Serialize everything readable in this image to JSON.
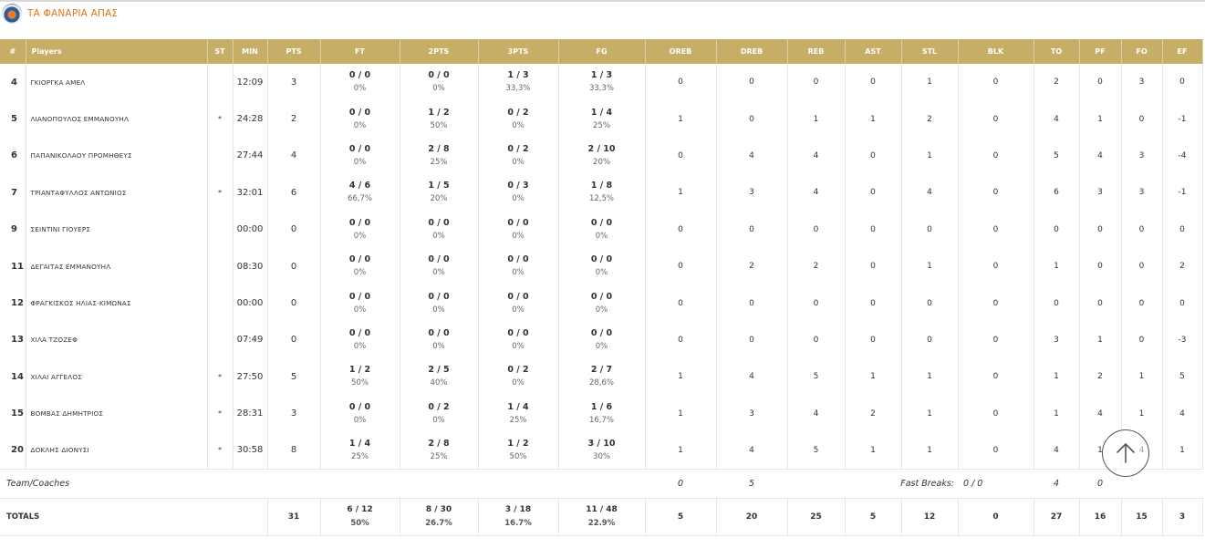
{
  "team": {
    "name": "ΤΑ ΦΑΝΑΡΙΑ ΑΠΑΣ",
    "logo_icon": "team-logo-icon"
  },
  "headers": [
    "#",
    "Players",
    "ST",
    "MIN",
    "PTS",
    "FT",
    "2PTS",
    "3PTS",
    "FG",
    "OREB",
    "DREB",
    "REB",
    "AST",
    "STL",
    "BLK",
    "TO",
    "PF",
    "FO",
    "EF"
  ],
  "players": [
    {
      "num": "4",
      "name": "ΓΚΙΟΡΓΚΑ ΑΜΕΛ",
      "st": "",
      "min": "12:09",
      "pts": "3",
      "ft": "0 / 0",
      "ft_pct": "0%",
      "p2": "0 / 0",
      "p2_pct": "0%",
      "p3": "1 / 3",
      "p3_pct": "33,3%",
      "fg": "1 / 3",
      "fg_pct": "33,3%",
      "oreb": "0",
      "dreb": "0",
      "reb": "0",
      "ast": "0",
      "stl": "1",
      "blk": "0",
      "to": "2",
      "pf": "0",
      "fo": "3",
      "ef": "0"
    },
    {
      "num": "5",
      "name": "ΛΙΑΝΟΠΟΥΛΟΣ ΕΜΜΑΝΟΥΗΛ",
      "st": "*",
      "min": "24:28",
      "pts": "2",
      "ft": "0 / 0",
      "ft_pct": "0%",
      "p2": "1 / 2",
      "p2_pct": "50%",
      "p3": "0 / 2",
      "p3_pct": "0%",
      "fg": "1 / 4",
      "fg_pct": "25%",
      "oreb": "1",
      "dreb": "0",
      "reb": "1",
      "ast": "1",
      "stl": "2",
      "blk": "0",
      "to": "4",
      "pf": "1",
      "fo": "0",
      "ef": "-1"
    },
    {
      "num": "6",
      "name": "ΠΑΠΑΝΙΚΟΛΑΟΥ ΠΡΟΜΗΘΕΥΣ",
      "st": "",
      "min": "27:44",
      "pts": "4",
      "ft": "0 / 0",
      "ft_pct": "0%",
      "p2": "2 / 8",
      "p2_pct": "25%",
      "p3": "0 / 2",
      "p3_pct": "0%",
      "fg": "2 / 10",
      "fg_pct": "20%",
      "oreb": "0",
      "dreb": "4",
      "reb": "4",
      "ast": "0",
      "stl": "1",
      "blk": "0",
      "to": "5",
      "pf": "4",
      "fo": "3",
      "ef": "-4"
    },
    {
      "num": "7",
      "name": "ΤΡΙΑΝΤΑΦΥΛΛΟΣ ΑΝΤΩΝΙΟΣ",
      "st": "*",
      "min": "32:01",
      "pts": "6",
      "ft": "4 / 6",
      "ft_pct": "66,7%",
      "p2": "1 / 5",
      "p2_pct": "20%",
      "p3": "0 / 3",
      "p3_pct": "0%",
      "fg": "1 / 8",
      "fg_pct": "12,5%",
      "oreb": "1",
      "dreb": "3",
      "reb": "4",
      "ast": "0",
      "stl": "4",
      "blk": "0",
      "to": "6",
      "pf": "3",
      "fo": "3",
      "ef": "-1"
    },
    {
      "num": "9",
      "name": "ΣΕΙΝΤΙΝΙ ΓΙΟΥΕΡΣ",
      "st": "",
      "min": "00:00",
      "pts": "0",
      "ft": "0 / 0",
      "ft_pct": "0%",
      "p2": "0 / 0",
      "p2_pct": "0%",
      "p3": "0 / 0",
      "p3_pct": "0%",
      "fg": "0 / 0",
      "fg_pct": "0%",
      "oreb": "0",
      "dreb": "0",
      "reb": "0",
      "ast": "0",
      "stl": "0",
      "blk": "0",
      "to": "0",
      "pf": "0",
      "fo": "0",
      "ef": "0"
    },
    {
      "num": "11",
      "name": "ΔΕΓΑΙΤΑΣ ΕΜΜΑΝΟΥΗΛ",
      "st": "",
      "min": "08:30",
      "pts": "0",
      "ft": "0 / 0",
      "ft_pct": "0%",
      "p2": "0 / 0",
      "p2_pct": "0%",
      "p3": "0 / 0",
      "p3_pct": "0%",
      "fg": "0 / 0",
      "fg_pct": "0%",
      "oreb": "0",
      "dreb": "2",
      "reb": "2",
      "ast": "0",
      "stl": "1",
      "blk": "0",
      "to": "1",
      "pf": "0",
      "fo": "0",
      "ef": "2"
    },
    {
      "num": "12",
      "name": "ΦΡΑΓΚΙΣΚΟΣ ΗΛΙΑΣ-ΚΙΜΩΝΑΣ",
      "st": "",
      "min": "00:00",
      "pts": "0",
      "ft": "0 / 0",
      "ft_pct": "0%",
      "p2": "0 / 0",
      "p2_pct": "0%",
      "p3": "0 / 0",
      "p3_pct": "0%",
      "fg": "0 / 0",
      "fg_pct": "0%",
      "oreb": "0",
      "dreb": "0",
      "reb": "0",
      "ast": "0",
      "stl": "0",
      "blk": "0",
      "to": "0",
      "pf": "0",
      "fo": "0",
      "ef": "0"
    },
    {
      "num": "13",
      "name": "ΧΙΛΑ ΤΖΟΖΕΦ",
      "st": "",
      "min": "07:49",
      "pts": "0",
      "ft": "0 / 0",
      "ft_pct": "0%",
      "p2": "0 / 0",
      "p2_pct": "0%",
      "p3": "0 / 0",
      "p3_pct": "0%",
      "fg": "0 / 0",
      "fg_pct": "0%",
      "oreb": "0",
      "dreb": "0",
      "reb": "0",
      "ast": "0",
      "stl": "0",
      "blk": "0",
      "to": "3",
      "pf": "1",
      "fo": "0",
      "ef": "-3"
    },
    {
      "num": "14",
      "name": "ΧΙΛΑΙ ΑΓΓΕΛΟΣ",
      "st": "*",
      "min": "27:50",
      "pts": "5",
      "ft": "1 / 2",
      "ft_pct": "50%",
      "p2": "2 / 5",
      "p2_pct": "40%",
      "p3": "0 / 2",
      "p3_pct": "0%",
      "fg": "2 / 7",
      "fg_pct": "28,6%",
      "oreb": "1",
      "dreb": "4",
      "reb": "5",
      "ast": "1",
      "stl": "1",
      "blk": "0",
      "to": "1",
      "pf": "2",
      "fo": "1",
      "ef": "5"
    },
    {
      "num": "15",
      "name": "ΒΟΜΒΑΣ ΔΗΜΗΤΡΙΟΣ",
      "st": "*",
      "min": "28:31",
      "pts": "3",
      "ft": "0 / 0",
      "ft_pct": "0%",
      "p2": "0 / 2",
      "p2_pct": "0%",
      "p3": "1 / 4",
      "p3_pct": "25%",
      "fg": "1 / 6",
      "fg_pct": "16,7%",
      "oreb": "1",
      "dreb": "3",
      "reb": "4",
      "ast": "2",
      "stl": "1",
      "blk": "0",
      "to": "1",
      "pf": "4",
      "fo": "1",
      "ef": "4"
    },
    {
      "num": "20",
      "name": "ΔΟΚΛΗΣ ΔΙΟΝΥΣΙ",
      "st": "*",
      "min": "30:58",
      "pts": "8",
      "ft": "1 / 4",
      "ft_pct": "25%",
      "p2": "2 / 8",
      "p2_pct": "25%",
      "p3": "1 / 2",
      "p3_pct": "50%",
      "fg": "3 / 10",
      "fg_pct": "30%",
      "oreb": "1",
      "dreb": "4",
      "reb": "5",
      "ast": "1",
      "stl": "1",
      "blk": "0",
      "to": "4",
      "pf": "1",
      "fo": "4",
      "ef": "1"
    }
  ],
  "team_coaches": {
    "label": "Team/Coaches",
    "oreb": "0",
    "dreb": "5",
    "fast_breaks_label": "Fast Breaks:",
    "fast_breaks": "0 / 0",
    "to": "4",
    "pf": "0"
  },
  "totals": {
    "label": "TOTALS",
    "pts": "31",
    "ft": "6 / 12",
    "ft_pct": "50%",
    "p2": "8 / 30",
    "p2_pct": "26.7%",
    "p3": "3 / 18",
    "p3_pct": "16.7%",
    "fg": "11 / 48",
    "fg_pct": "22.9%",
    "oreb": "5",
    "dreb": "20",
    "reb": "25",
    "ast": "5",
    "stl": "12",
    "blk": "0",
    "to": "27",
    "pf": "16",
    "fo": "15",
    "ef": "3"
  },
  "scroll_top": {
    "icon": "arrow-up-icon"
  }
}
